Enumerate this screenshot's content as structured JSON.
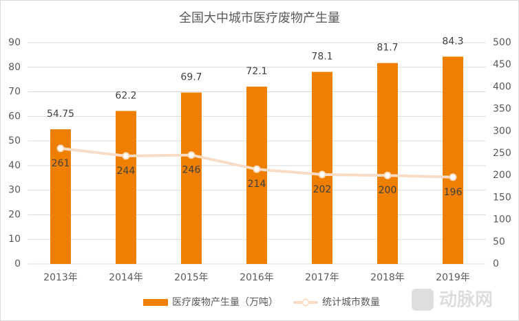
{
  "chart_data": {
    "type": "bar",
    "title": "全国大中城市医疗废物产生量",
    "categories": [
      "2013年",
      "2014年",
      "2015年",
      "2016年",
      "2017年",
      "2018年",
      "2019年"
    ],
    "series": [
      {
        "name": "医疗废物产生量（万吨）",
        "type": "bar",
        "color": "#ee7f00",
        "values": [
          54.75,
          62.2,
          69.7,
          72.1,
          78.1,
          81.7,
          84.3
        ]
      },
      {
        "name": "统计城市数量",
        "type": "line",
        "axis": "y2",
        "color": "#f8dcc5",
        "values": [
          261,
          244,
          246,
          214,
          202,
          200,
          196
        ]
      }
    ],
    "ylim": [
      0,
      90
    ],
    "yticks": [
      0,
      10,
      20,
      30,
      40,
      50,
      60,
      70,
      80,
      90
    ],
    "y2lim": [
      0,
      500
    ],
    "y2ticks": [
      0,
      50,
      100,
      150,
      200,
      250,
      300,
      350,
      400,
      450,
      500
    ],
    "grid": true,
    "legend": "bottom",
    "watermark": "动脉网"
  }
}
